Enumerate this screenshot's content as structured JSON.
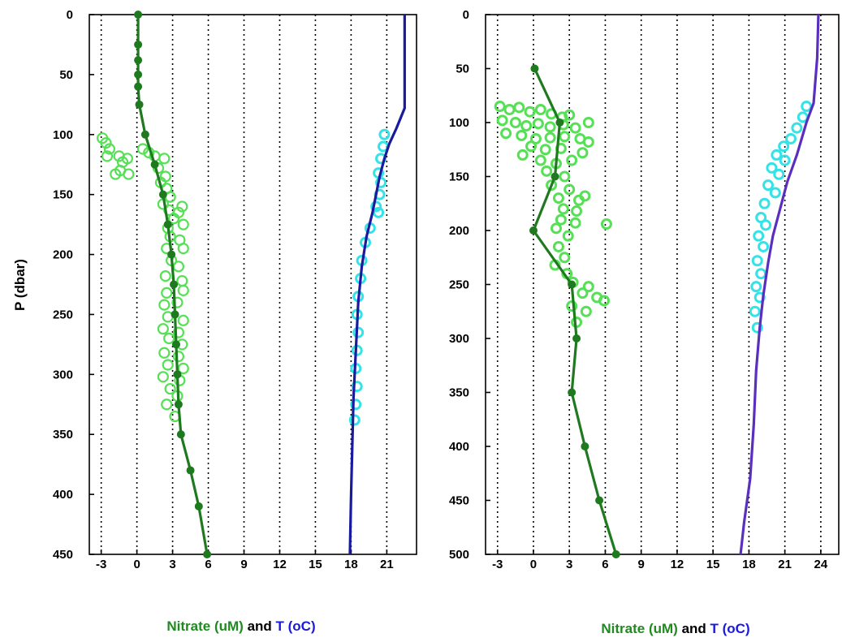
{
  "chart_data": [
    {
      "type": "scatter",
      "ylabel": "P (dbar)",
      "xlabel_parts": [
        {
          "text": "Nitrate (uM)",
          "color": "#1f8a1f"
        },
        {
          "text": " and ",
          "color": "#000000"
        },
        {
          "text": "T (oC)",
          "color": "#1a1adf"
        }
      ],
      "xlim": [
        -4,
        23.5
      ],
      "ylim": [
        0,
        450
      ],
      "y_reversed": true,
      "xticks": [
        -3,
        0,
        3,
        6,
        9,
        12,
        15,
        18,
        21
      ],
      "xtick_labels": [
        "-3",
        "0",
        "3",
        "6",
        "9",
        "12",
        "15",
        "18",
        "21"
      ],
      "yticks": [
        0,
        50,
        100,
        150,
        200,
        250,
        300,
        350,
        400,
        450
      ],
      "ytick_labels": [
        "0",
        "50",
        "100",
        "150",
        "200",
        "250",
        "300",
        "350",
        "400",
        "450"
      ],
      "grid": "vertical-dotted",
      "series": [
        {
          "role": "nitrate-profile",
          "color": "#1f7a1f",
          "style": "line-markers",
          "points": [
            [
              0.1,
              0
            ],
            [
              0.1,
              25
            ],
            [
              0.1,
              38
            ],
            [
              0.1,
              50
            ],
            [
              0.1,
              60
            ],
            [
              0.2,
              75
            ],
            [
              0.7,
              100
            ],
            [
              1.5,
              125
            ],
            [
              2.2,
              150
            ],
            [
              2.6,
              175
            ],
            [
              2.9,
              200
            ],
            [
              3.1,
              225
            ],
            [
              3.2,
              250
            ],
            [
              3.3,
              275
            ],
            [
              3.4,
              300
            ],
            [
              3.5,
              325
            ],
            [
              3.7,
              350
            ],
            [
              4.5,
              380
            ],
            [
              5.2,
              410
            ],
            [
              5.9,
              450
            ]
          ]
        },
        {
          "role": "nitrate-samples",
          "color": "#55e055",
          "style": "open-circles",
          "points": [
            [
              -2.9,
              103
            ],
            [
              -2.6,
              107
            ],
            [
              -2.3,
              112
            ],
            [
              -2.5,
              118
            ],
            [
              -1.5,
              118
            ],
            [
              -1.2,
              123
            ],
            [
              -0.8,
              120
            ],
            [
              -1.4,
              130
            ],
            [
              -0.7,
              133
            ],
            [
              -1.8,
              133
            ],
            [
              0.5,
              112
            ],
            [
              1.0,
              115
            ],
            [
              1.5,
              118
            ],
            [
              2.3,
              120
            ],
            [
              1.8,
              128
            ],
            [
              2.4,
              135
            ],
            [
              2.0,
              140
            ],
            [
              2.5,
              145
            ],
            [
              2.8,
              152
            ],
            [
              2.2,
              158
            ],
            [
              2.7,
              163
            ],
            [
              3.5,
              165
            ],
            [
              3.8,
              160
            ],
            [
              3.1,
              170
            ],
            [
              2.6,
              178
            ],
            [
              3.9,
              175
            ],
            [
              2.8,
              185
            ],
            [
              3.6,
              188
            ],
            [
              2.5,
              195
            ],
            [
              3.9,
              195
            ],
            [
              2.9,
              205
            ],
            [
              3.5,
              210
            ],
            [
              2.4,
              218
            ],
            [
              3.8,
              222
            ],
            [
              2.5,
              232
            ],
            [
              3.9,
              230
            ],
            [
              2.3,
              242
            ],
            [
              3.4,
              240
            ],
            [
              2.6,
              252
            ],
            [
              3.9,
              255
            ],
            [
              2.2,
              262
            ],
            [
              3.5,
              265
            ],
            [
              2.7,
              270
            ],
            [
              3.8,
              275
            ],
            [
              2.3,
              282
            ],
            [
              3.5,
              285
            ],
            [
              2.6,
              292
            ],
            [
              3.9,
              295
            ],
            [
              2.2,
              302
            ],
            [
              3.6,
              305
            ],
            [
              2.8,
              312
            ],
            [
              3.4,
              318
            ],
            [
              2.5,
              325
            ],
            [
              3.2,
              335
            ]
          ]
        },
        {
          "role": "temperature-profile",
          "color": "#1a1a9e",
          "style": "line",
          "points": [
            [
              22.5,
              0
            ],
            [
              22.5,
              40
            ],
            [
              22.5,
              78
            ],
            [
              21.8,
              95
            ],
            [
              21.2,
              108
            ],
            [
              20.8,
              120
            ],
            [
              20.4,
              135
            ],
            [
              20.1,
              150
            ],
            [
              19.8,
              165
            ],
            [
              19.3,
              185
            ],
            [
              18.9,
              210
            ],
            [
              18.6,
              240
            ],
            [
              18.4,
              280
            ],
            [
              18.2,
              320
            ],
            [
              18.1,
              360
            ],
            [
              18.0,
              400
            ],
            [
              17.9,
              450
            ]
          ]
        },
        {
          "role": "temperature-samples",
          "color": "#33e3e8",
          "style": "dense-circles",
          "points": [
            [
              20.8,
              100
            ],
            [
              20.7,
              110
            ],
            [
              20.5,
              120
            ],
            [
              20.3,
              132
            ],
            [
              20.5,
              140
            ],
            [
              20.4,
              150
            ],
            [
              20.1,
              160
            ],
            [
              20.3,
              165
            ],
            [
              19.6,
              178
            ],
            [
              19.2,
              190
            ],
            [
              18.9,
              205
            ],
            [
              18.8,
              220
            ],
            [
              18.6,
              235
            ],
            [
              18.5,
              250
            ],
            [
              18.6,
              265
            ],
            [
              18.5,
              280
            ],
            [
              18.4,
              295
            ],
            [
              18.5,
              310
            ],
            [
              18.4,
              325
            ],
            [
              18.3,
              338
            ]
          ]
        }
      ]
    },
    {
      "type": "scatter",
      "ylabel": "",
      "xlabel_parts": [
        {
          "text": "Nitrate (uM)",
          "color": "#1f8a1f"
        },
        {
          "text": " and ",
          "color": "#000000"
        },
        {
          "text": "T (oC)",
          "color": "#1a1adf"
        }
      ],
      "xlim": [
        -4,
        25.5
      ],
      "ylim": [
        0,
        500
      ],
      "y_reversed": true,
      "xticks": [
        -3,
        0,
        3,
        6,
        9,
        12,
        15,
        18,
        21,
        24
      ],
      "xtick_labels": [
        "-3",
        "0",
        "3",
        "6",
        "9",
        "12",
        "15",
        "18",
        "21",
        "24"
      ],
      "yticks": [
        0,
        50,
        100,
        150,
        200,
        250,
        300,
        350,
        400,
        450,
        500
      ],
      "ytick_labels": [
        "0",
        "50",
        "100",
        "150",
        "200",
        "250",
        "300",
        "350",
        "400",
        "450",
        "500"
      ],
      "grid": "vertical-dotted",
      "series": [
        {
          "role": "nitrate-profile",
          "color": "#1f7a1f",
          "style": "line-markers",
          "points": [
            [
              0.1,
              50
            ],
            [
              2.2,
              100
            ],
            [
              1.8,
              150
            ],
            [
              0.0,
              200
            ],
            [
              3.2,
              250
            ],
            [
              3.6,
              300
            ],
            [
              3.2,
              350
            ],
            [
              4.3,
              400
            ],
            [
              5.5,
              450
            ],
            [
              6.9,
              500
            ]
          ]
        },
        {
          "role": "nitrate-samples",
          "color": "#55e055",
          "style": "dense-circles",
          "points": [
            [
              -2.8,
              85
            ],
            [
              -2.0,
              88
            ],
            [
              -1.2,
              86
            ],
            [
              -0.3,
              90
            ],
            [
              0.6,
              88
            ],
            [
              1.5,
              92
            ],
            [
              2.4,
              95
            ],
            [
              3.0,
              93
            ],
            [
              -2.6,
              98
            ],
            [
              -1.5,
              100
            ],
            [
              -0.6,
              103
            ],
            [
              0.4,
              101
            ],
            [
              1.4,
              104
            ],
            [
              2.5,
              102
            ],
            [
              3.5,
              105
            ],
            [
              4.6,
              100
            ],
            [
              -2.3,
              110
            ],
            [
              -1.0,
              112
            ],
            [
              0.2,
              115
            ],
            [
              1.4,
              114
            ],
            [
              2.6,
              113
            ],
            [
              3.9,
              115
            ],
            [
              -0.2,
              122
            ],
            [
              1.0,
              125
            ],
            [
              2.3,
              124
            ],
            [
              4.6,
              118
            ],
            [
              4.1,
              128
            ],
            [
              -0.9,
              130
            ],
            [
              0.6,
              135
            ],
            [
              1.9,
              138
            ],
            [
              3.2,
              135
            ],
            [
              1.1,
              145
            ],
            [
              2.6,
              150
            ],
            [
              1.5,
              158
            ],
            [
              3.0,
              162
            ],
            [
              2.1,
              170
            ],
            [
              3.8,
              172
            ],
            [
              4.3,
              168
            ],
            [
              2.5,
              180
            ],
            [
              3.6,
              182
            ],
            [
              2.3,
              190
            ],
            [
              3.5,
              193
            ],
            [
              6.1,
              194
            ],
            [
              1.9,
              198
            ],
            [
              2.9,
              205
            ],
            [
              2.1,
              215
            ],
            [
              2.6,
              225
            ],
            [
              1.8,
              232
            ],
            [
              2.8,
              240
            ],
            [
              3.3,
              248
            ],
            [
              4.6,
              252
            ],
            [
              4.1,
              258
            ],
            [
              5.3,
              262
            ],
            [
              5.9,
              265
            ],
            [
              3.2,
              270
            ],
            [
              4.4,
              275
            ],
            [
              3.6,
              285
            ]
          ]
        },
        {
          "role": "temperature-profile",
          "color": "#5a2fc0",
          "style": "line",
          "points": [
            [
              23.8,
              0
            ],
            [
              23.7,
              40
            ],
            [
              23.4,
              82
            ],
            [
              22.8,
              100
            ],
            [
              22.0,
              130
            ],
            [
              21.2,
              155
            ],
            [
              20.6,
              180
            ],
            [
              20.0,
              205
            ],
            [
              19.6,
              230
            ],
            [
              19.2,
              260
            ],
            [
              18.9,
              290
            ],
            [
              18.6,
              330
            ],
            [
              18.4,
              380
            ],
            [
              18.1,
              430
            ],
            [
              17.6,
              470
            ],
            [
              17.3,
              500
            ]
          ]
        },
        {
          "role": "temperature-samples",
          "color": "#33e3e8",
          "style": "dense-circles",
          "points": [
            [
              22.8,
              85
            ],
            [
              22.5,
              95
            ],
            [
              22.0,
              105
            ],
            [
              21.5,
              115
            ],
            [
              20.9,
              122
            ],
            [
              20.3,
              130
            ],
            [
              21.0,
              135
            ],
            [
              19.9,
              142
            ],
            [
              20.5,
              148
            ],
            [
              19.6,
              158
            ],
            [
              20.2,
              165
            ],
            [
              19.3,
              175
            ],
            [
              19.0,
              188
            ],
            [
              19.4,
              195
            ],
            [
              18.8,
              205
            ],
            [
              19.2,
              215
            ],
            [
              18.7,
              228
            ],
            [
              19.0,
              240
            ],
            [
              18.6,
              252
            ],
            [
              18.9,
              262
            ],
            [
              18.5,
              275
            ],
            [
              18.7,
              290
            ]
          ]
        }
      ]
    }
  ]
}
